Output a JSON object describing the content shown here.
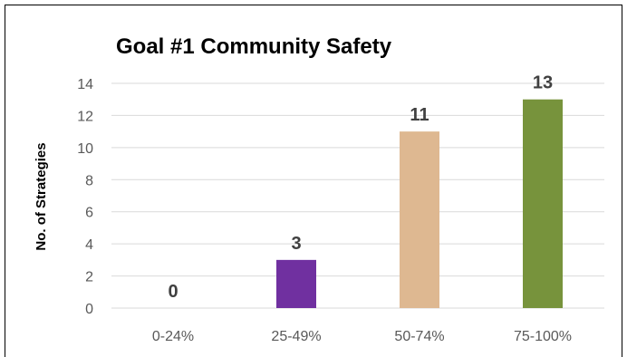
{
  "chart_data": {
    "type": "bar",
    "title": "Goal #1 Community Safety",
    "xlabel": "",
    "ylabel": "No. of Strategies",
    "categories": [
      "0-24%",
      "25-49%",
      "50-74%",
      "75-100%"
    ],
    "values": [
      0,
      3,
      11,
      13
    ],
    "data_labels": [
      "0",
      "3",
      "11",
      "13"
    ],
    "bar_colors": [
      "#7030a0",
      "#7030a0",
      "#deb891",
      "#77933c"
    ],
    "ylim": [
      0,
      14
    ],
    "yticks": [
      0,
      2,
      4,
      6,
      8,
      10,
      12,
      14
    ],
    "ytick_labels": [
      "0",
      "2",
      "4",
      "6",
      "8",
      "10",
      "12",
      "14"
    ],
    "grid": true,
    "legend": "none"
  },
  "colors": {
    "grid": "#d9d9d9",
    "tick_text": "#595959",
    "data_label": "#404040"
  }
}
